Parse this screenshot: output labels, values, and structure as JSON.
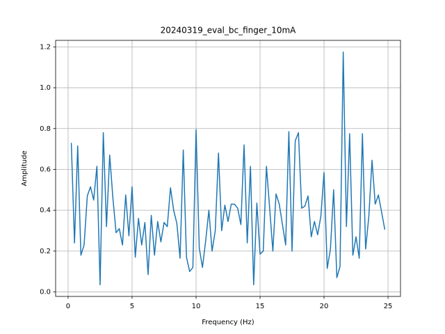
{
  "chart_data": {
    "type": "line",
    "title": "20240319_eval_bc_finger_10mA",
    "x_label": "Frequency (Hz)",
    "y_label": "Amplitude",
    "color": "#1f77b4",
    "grid": true,
    "x": [
      0.25,
      0.5,
      0.75,
      1.0,
      1.25,
      1.5,
      1.75,
      2.0,
      2.25,
      2.5,
      2.75,
      3.0,
      3.25,
      3.5,
      3.75,
      4.0,
      4.25,
      4.5,
      4.75,
      5.0,
      5.25,
      5.5,
      5.75,
      6.0,
      6.25,
      6.5,
      6.75,
      7.0,
      7.25,
      7.5,
      7.75,
      8.0,
      8.25,
      8.5,
      8.75,
      9.0,
      9.25,
      9.5,
      9.75,
      10.0,
      10.25,
      10.5,
      10.75,
      11.0,
      11.25,
      11.5,
      11.75,
      12.0,
      12.25,
      12.5,
      12.75,
      13.0,
      13.25,
      13.5,
      13.75,
      14.0,
      14.25,
      14.5,
      14.75,
      15.0,
      15.25,
      15.5,
      15.75,
      16.0,
      16.25,
      16.5,
      16.75,
      17.0,
      17.25,
      17.5,
      17.75,
      18.0,
      18.25,
      18.5,
      18.75,
      19.0,
      19.25,
      19.5,
      19.75,
      20.0,
      20.25,
      20.5,
      20.75,
      21.0,
      21.25,
      21.5,
      21.75,
      22.0,
      22.25,
      22.5,
      22.75,
      23.0,
      23.25,
      23.5,
      23.75,
      24.0,
      24.25,
      24.5,
      24.75
    ],
    "values": [
      0.73,
      0.24,
      0.715,
      0.18,
      0.23,
      0.47,
      0.515,
      0.45,
      0.615,
      0.035,
      0.78,
      0.32,
      0.67,
      0.46,
      0.29,
      0.31,
      0.23,
      0.475,
      0.275,
      0.515,
      0.17,
      0.36,
      0.23,
      0.34,
      0.085,
      0.375,
      0.18,
      0.345,
      0.245,
      0.34,
      0.32,
      0.51,
      0.4,
      0.335,
      0.165,
      0.695,
      0.17,
      0.1,
      0.12,
      0.795,
      0.215,
      0.12,
      0.25,
      0.4,
      0.2,
      0.3,
      0.68,
      0.3,
      0.425,
      0.345,
      0.43,
      0.43,
      0.41,
      0.33,
      0.72,
      0.24,
      0.615,
      0.035,
      0.435,
      0.185,
      0.2,
      0.615,
      0.41,
      0.2,
      0.48,
      0.43,
      0.33,
      0.23,
      0.785,
      0.2,
      0.74,
      0.78,
      0.41,
      0.42,
      0.47,
      0.27,
      0.345,
      0.28,
      0.37,
      0.585,
      0.115,
      0.21,
      0.5,
      0.07,
      0.125,
      1.175,
      0.32,
      0.775,
      0.18,
      0.27,
      0.165,
      0.775,
      0.21,
      0.37,
      0.645,
      0.43,
      0.475,
      0.39,
      0.305
    ],
    "xlim": [
      -0.975,
      25.975
    ],
    "xticks": [
      0,
      5,
      10,
      15,
      20,
      25
    ],
    "ylim": [
      -0.022,
      1.232
    ],
    "yticks": [
      {
        "value": 0,
        "label": "0.0"
      },
      0.2,
      0.4,
      0.6,
      0.8,
      {
        "value": 1,
        "label": "1.0"
      },
      1.2
    ]
  }
}
